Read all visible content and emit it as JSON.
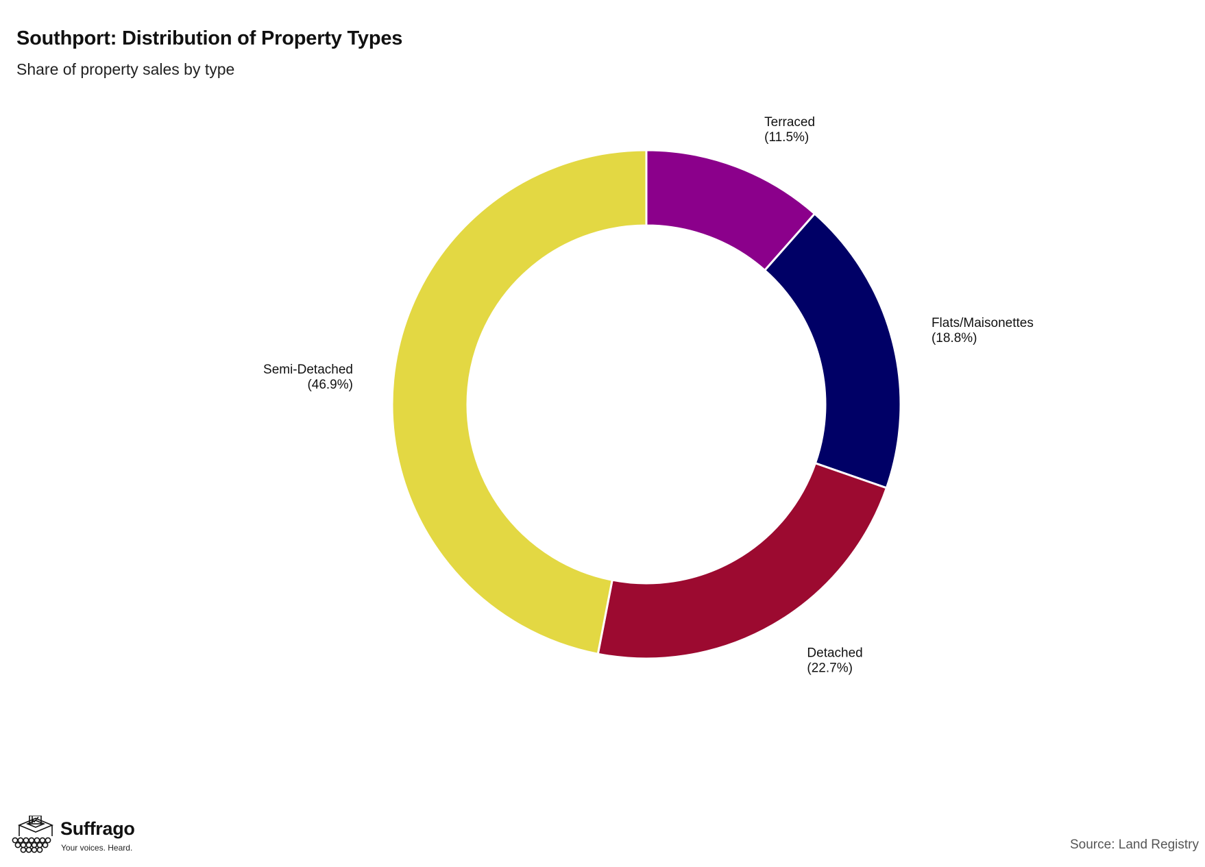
{
  "title": "Southport: Distribution of Property Types",
  "subtitle": "Share of property sales by type",
  "chart_data": {
    "type": "pie",
    "variant": "donut",
    "title": "Southport: Distribution of Property Types",
    "subtitle": "Share of property sales by type",
    "categories": [
      "Terraced",
      "Flats/Maisonettes",
      "Detached",
      "Semi-Detached"
    ],
    "values": [
      11.5,
      18.8,
      22.7,
      46.9
    ],
    "value_labels": [
      "(11.5%)",
      "(18.8%)",
      "(22.7%)",
      "(46.9%)"
    ],
    "colors": [
      "#8B008B",
      "#000066",
      "#9C0A30",
      "#E3D843"
    ],
    "start_angle": "12 o'clock",
    "direction": "clockwise",
    "legend": "none"
  },
  "branding": {
    "name": "Suffrago",
    "tagline": "Your voices. Heard."
  },
  "source": "Source: Land Registry"
}
